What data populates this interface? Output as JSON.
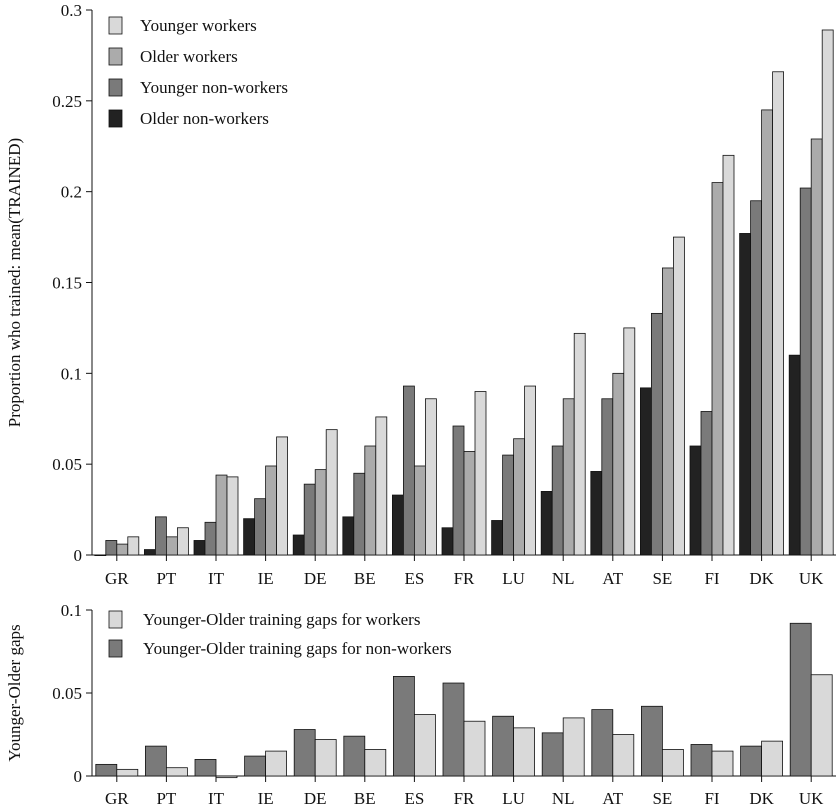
{
  "chart_data": [
    {
      "type": "bar",
      "ylabel": "Proportion who trained: mean(TRAINED)",
      "ylim": [
        0,
        0.3
      ],
      "yticks": [
        "0",
        "0.05",
        "0.1",
        "0.15",
        "0.2",
        "0.25",
        "0.3"
      ],
      "categories": [
        "GR",
        "PT",
        "IT",
        "IE",
        "DE",
        "BE",
        "ES",
        "FR",
        "LU",
        "NL",
        "AT",
        "SE",
        "FI",
        "DK",
        "UK"
      ],
      "legend_position": "top-left",
      "series": [
        {
          "name": "Older  non-workers",
          "color": "#222222",
          "values": [
            0.0,
            0.003,
            0.008,
            0.02,
            0.011,
            0.021,
            0.033,
            0.015,
            0.019,
            0.035,
            0.046,
            0.092,
            0.06,
            0.177,
            0.11
          ]
        },
        {
          "name": "Younger non-workers",
          "color": "#7a7a7a",
          "values": [
            0.008,
            0.021,
            0.018,
            0.031,
            0.039,
            0.045,
            0.093,
            0.071,
            0.055,
            0.06,
            0.086,
            0.133,
            0.079,
            0.195,
            0.202
          ]
        },
        {
          "name": "Older   workers",
          "color": "#ababab",
          "values": [
            0.006,
            0.01,
            0.044,
            0.049,
            0.047,
            0.06,
            0.049,
            0.057,
            0.064,
            0.086,
            0.1,
            0.158,
            0.205,
            0.245,
            0.229
          ]
        },
        {
          "name": "Younger workers",
          "color": "#d9d9d9",
          "values": [
            0.01,
            0.015,
            0.043,
            0.065,
            0.069,
            0.076,
            0.086,
            0.09,
            0.093,
            0.122,
            0.125,
            0.175,
            0.22,
            0.266,
            0.289
          ]
        }
      ],
      "legend_order": [
        3,
        2,
        1,
        0
      ]
    },
    {
      "type": "bar",
      "ylabel": "Younger-Older gaps",
      "ylim": [
        0,
        0.1
      ],
      "yticks": [
        "0",
        "0.05",
        "0.1"
      ],
      "categories": [
        "GR",
        "PT",
        "IT",
        "IE",
        "DE",
        "BE",
        "ES",
        "FR",
        "LU",
        "NL",
        "AT",
        "SE",
        "FI",
        "DK",
        "UK"
      ],
      "legend_position": "top-left",
      "series": [
        {
          "name": "Younger-Older training gaps for non-workers",
          "color": "#7a7a7a",
          "values": [
            0.007,
            0.018,
            0.01,
            0.012,
            0.028,
            0.024,
            0.06,
            0.056,
            0.036,
            0.026,
            0.04,
            0.042,
            0.019,
            0.018,
            0.092
          ]
        },
        {
          "name": "Younger-Older training gaps for workers",
          "color": "#d9d9d9",
          "values": [
            0.004,
            0.005,
            -0.001,
            0.015,
            0.022,
            0.016,
            0.037,
            0.033,
            0.029,
            0.035,
            0.025,
            0.016,
            0.015,
            0.021,
            0.061
          ]
        }
      ],
      "legend_order": [
        1,
        0
      ]
    }
  ]
}
